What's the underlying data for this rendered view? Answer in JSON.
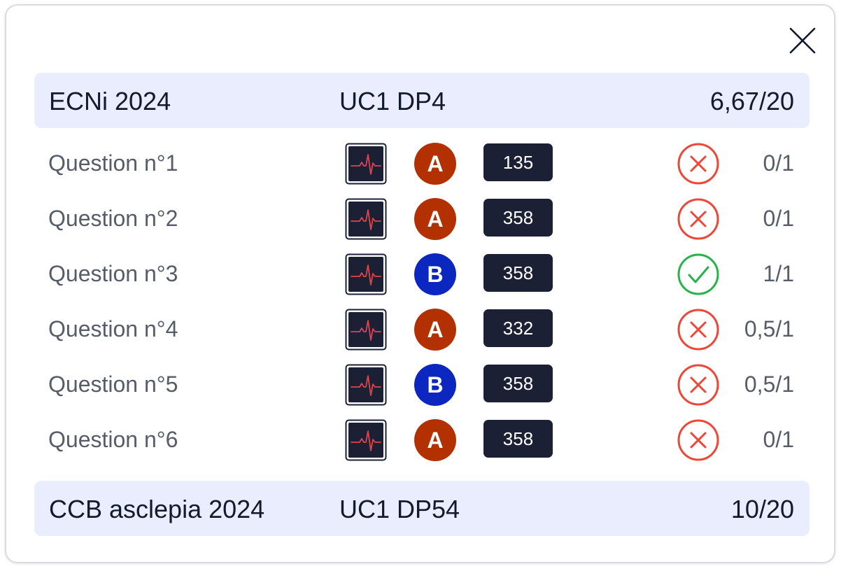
{
  "groups": [
    {
      "title": "ECNi 2024",
      "code": "UC1 DP4",
      "score": "6,67/20",
      "questions": [
        {
          "label": "Question n°1",
          "rank": "A",
          "item": "135",
          "result": "wrong",
          "score": "0/1"
        },
        {
          "label": "Question n°2",
          "rank": "A",
          "item": "358",
          "result": "wrong",
          "score": "0/1"
        },
        {
          "label": "Question n°3",
          "rank": "B",
          "item": "358",
          "result": "correct",
          "score": "1/1"
        },
        {
          "label": "Question n°4",
          "rank": "A",
          "item": "332",
          "result": "wrong",
          "score": "0,5/1"
        },
        {
          "label": "Question n°5",
          "rank": "B",
          "item": "358",
          "result": "wrong",
          "score": "0,5/1"
        },
        {
          "label": "Question n°6",
          "rank": "A",
          "item": "358",
          "result": "wrong",
          "score": "0/1"
        }
      ]
    },
    {
      "title": "CCB asclepia 2024",
      "code": "UC1 DP54",
      "score": "10/20"
    }
  ],
  "icons": {
    "close": "close-icon",
    "ecg": "ecg-monitor-icon",
    "correct": "check-circle-icon",
    "wrong": "x-circle-icon"
  },
  "colors": {
    "header_bg": "#e9edfd",
    "rank_a": "#b33100",
    "rank_b": "#0c27c0",
    "chip_bg": "#1b2035",
    "correct": "#27b34a",
    "wrong": "#ee4637",
    "ecg_trace": "#e0444a"
  }
}
